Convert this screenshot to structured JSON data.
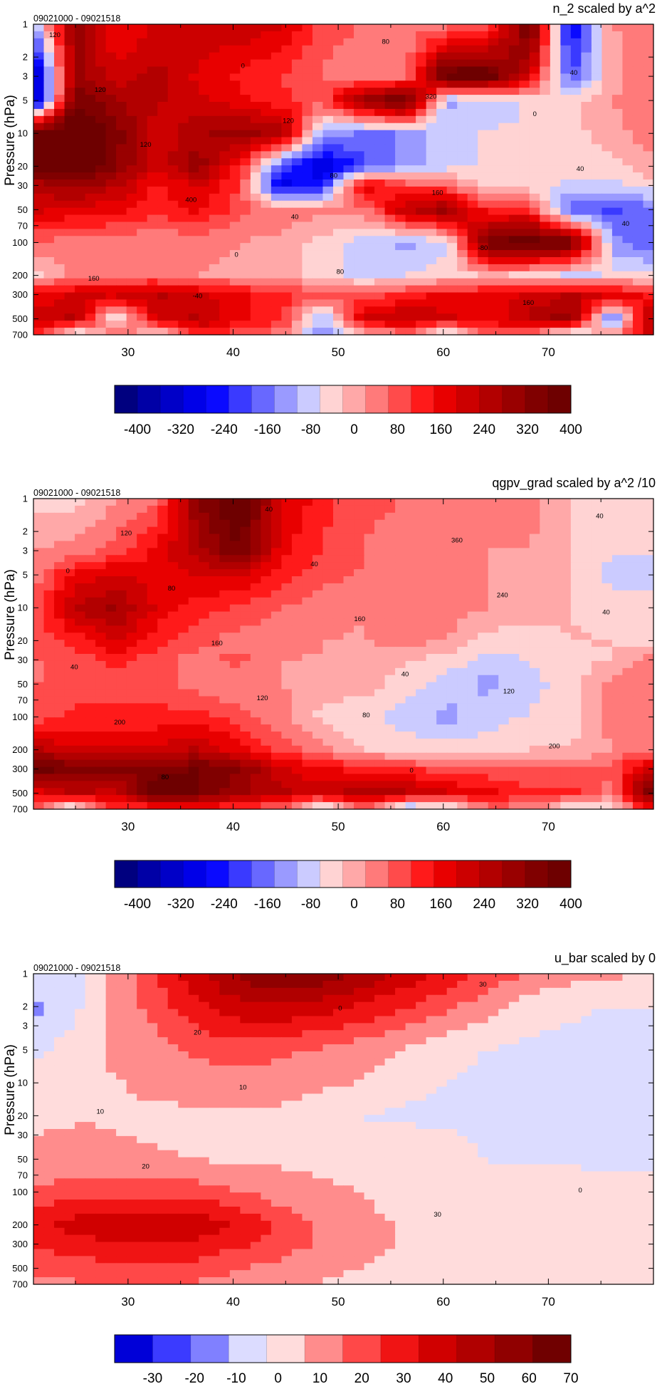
{
  "chart_data": [
    {
      "type": "heatmap",
      "title": "n_2 scaled by a^2",
      "date_range": "09021000 - 09021518",
      "ylabel": "Pressure (hPa)",
      "x_ticks": [
        30,
        40,
        50,
        60,
        70
      ],
      "xlim": [
        21,
        80
      ],
      "y_ticks": [
        1,
        2,
        3,
        5,
        10,
        20,
        30,
        50,
        70,
        100,
        200,
        300,
        500,
        700
      ],
      "y_tick_labels": [
        "1",
        "2",
        "3",
        "5",
        "10",
        "20",
        "30",
        "50",
        "70",
        "100",
        "200",
        "300",
        "500",
        "700"
      ],
      "ylim": [
        1,
        700
      ],
      "y_scale": "log",
      "colorbar_labels": [
        "-400",
        "-320",
        "-240",
        "-160",
        "-80",
        "0",
        "80",
        "160",
        "240",
        "320",
        "400"
      ],
      "colorbar_colors": [
        "#00007f",
        "#0000a6",
        "#0000c8",
        "#0000e8",
        "#0a0aff",
        "#3a3aff",
        "#6868ff",
        "#9a9aff",
        "#cbcbff",
        "#ffd3d3",
        "#ffa8a8",
        "#ff7a7a",
        "#ff4b4b",
        "#ff1a1a",
        "#e80000",
        "#cc0000",
        "#b20000",
        "#990000",
        "#800000",
        "#6e0000"
      ],
      "contour_labels": [
        "120",
        "40",
        "0",
        "-40",
        "160",
        "120",
        "80",
        "40",
        "0",
        "-80",
        "120",
        "80",
        "40",
        "120",
        "160",
        "400",
        "320",
        "160",
        "80",
        "40",
        "0"
      ],
      "field_rows": [
        {
          "p": 1,
          "v": [
            -120,
            300,
            140,
            200,
            220,
            220,
            200,
            80,
            60,
            40,
            40,
            60,
            400,
            -300,
            20,
            40
          ]
        },
        {
          "p": 3,
          "v": [
            -400,
            300,
            200,
            250,
            180,
            140,
            100,
            60,
            40,
            40,
            400,
            400,
            200,
            -200,
            10,
            40
          ]
        },
        {
          "p": 5,
          "v": [
            -400,
            350,
            280,
            240,
            200,
            160,
            120,
            80,
            300,
            400,
            -120,
            -80,
            -60,
            -40,
            20,
            40
          ]
        },
        {
          "p": 10,
          "v": [
            400,
            450,
            340,
            200,
            260,
            300,
            260,
            -120,
            -160,
            -140,
            -80,
            -60,
            -60,
            -40,
            10,
            40
          ]
        },
        {
          "p": 20,
          "v": [
            400,
            420,
            320,
            200,
            300,
            120,
            -200,
            -320,
            -200,
            -120,
            -80,
            -60,
            -60,
            -40,
            -40,
            20
          ]
        },
        {
          "p": 30,
          "v": [
            240,
            300,
            240,
            140,
            200,
            100,
            -300,
            -240,
            200,
            80,
            60,
            -40,
            -40,
            -80,
            -80,
            -40
          ]
        },
        {
          "p": 50,
          "v": [
            200,
            180,
            160,
            120,
            160,
            80,
            40,
            40,
            40,
            240,
            300,
            120,
            120,
            -200,
            -200,
            -160
          ]
        },
        {
          "p": 100,
          "v": [
            60,
            40,
            40,
            20,
            40,
            20,
            10,
            -40,
            -80,
            -120,
            -80,
            360,
            400,
            380,
            -120,
            -200
          ]
        },
        {
          "p": 200,
          "v": [
            -40,
            40,
            40,
            40,
            20,
            10,
            0,
            -40,
            -80,
            -60,
            -40,
            -20,
            -40,
            -80,
            -60,
            -40
          ]
        },
        {
          "p": 300,
          "v": [
            160,
            200,
            200,
            240,
            200,
            160,
            120,
            80,
            80,
            120,
            160,
            160,
            200,
            240,
            200,
            120
          ]
        },
        {
          "p": 500,
          "v": [
            200,
            240,
            -80,
            200,
            240,
            160,
            120,
            -120,
            200,
            240,
            200,
            160,
            240,
            300,
            -200,
            300
          ]
        },
        {
          "p": 700,
          "v": [
            120,
            -120,
            80,
            -80,
            120,
            60,
            40,
            -160,
            -40,
            40,
            -120,
            80,
            40,
            -120,
            40,
            200
          ]
        }
      ]
    },
    {
      "type": "heatmap",
      "title": "qgpv_grad scaled by a^2 /10",
      "date_range": "09021000 - 09021518",
      "ylabel": "Pressure (hPa)",
      "x_ticks": [
        30,
        40,
        50,
        60,
        70
      ],
      "xlim": [
        21,
        80
      ],
      "y_ticks": [
        1,
        2,
        3,
        5,
        10,
        20,
        30,
        50,
        70,
        100,
        200,
        300,
        500,
        700
      ],
      "y_tick_labels": [
        "1",
        "2",
        "3",
        "5",
        "10",
        "20",
        "30",
        "50",
        "70",
        "100",
        "200",
        "300",
        "500",
        "700"
      ],
      "ylim": [
        1,
        700
      ],
      "y_scale": "log",
      "colorbar_labels": [
        "-400",
        "-320",
        "-240",
        "-160",
        "-80",
        "0",
        "80",
        "160",
        "240",
        "320",
        "400"
      ],
      "colorbar_colors": [
        "#00007f",
        "#0000a6",
        "#0000c8",
        "#0000e8",
        "#0a0aff",
        "#3a3aff",
        "#6868ff",
        "#9a9aff",
        "#cbcbff",
        "#ffd3d3",
        "#ffa8a8",
        "#ff7a7a",
        "#ff4b4b",
        "#ff1a1a",
        "#e80000",
        "#cc0000",
        "#b20000",
        "#990000",
        "#800000",
        "#6e0000"
      ],
      "contour_labels": [
        "120",
        "80",
        "40",
        "40",
        "120",
        "80",
        "0",
        "40",
        "40",
        "200",
        "160",
        "360",
        "200",
        "160",
        "40",
        "120",
        "240",
        "80",
        "40",
        "0"
      ],
      "field_rows": [
        {
          "p": 1,
          "v": [
            -40,
            -40,
            20,
            60,
            320,
            420,
            200,
            120,
            80,
            60,
            40,
            40,
            40,
            -20,
            -40,
            -40
          ]
        },
        {
          "p": 3,
          "v": [
            20,
            40,
            80,
            160,
            260,
            360,
            160,
            100,
            60,
            40,
            40,
            20,
            20,
            -20,
            -60,
            -60
          ]
        },
        {
          "p": 5,
          "v": [
            40,
            160,
            200,
            160,
            200,
            200,
            120,
            80,
            60,
            40,
            40,
            20,
            0,
            -20,
            -80,
            -80
          ]
        },
        {
          "p": 10,
          "v": [
            80,
            240,
            280,
            180,
            120,
            100,
            60,
            40,
            20,
            40,
            40,
            20,
            0,
            -20,
            -40,
            -40
          ]
        },
        {
          "p": 20,
          "v": [
            80,
            120,
            200,
            120,
            80,
            40,
            40,
            20,
            20,
            40,
            20,
            -40,
            -40,
            -20,
            -20,
            -40
          ]
        },
        {
          "p": 30,
          "v": [
            60,
            80,
            120,
            80,
            40,
            80,
            20,
            20,
            0,
            -20,
            -40,
            -80,
            -60,
            -40,
            -20,
            40
          ]
        },
        {
          "p": 50,
          "v": [
            60,
            80,
            80,
            80,
            40,
            20,
            20,
            20,
            0,
            -40,
            -80,
            -120,
            -80,
            -40,
            40,
            60
          ]
        },
        {
          "p": 100,
          "v": [
            80,
            120,
            120,
            120,
            120,
            80,
            40,
            -40,
            -60,
            -80,
            -120,
            -80,
            -60,
            -40,
            40,
            40
          ]
        },
        {
          "p": 200,
          "v": [
            240,
            200,
            200,
            200,
            240,
            160,
            80,
            40,
            -20,
            -40,
            -40,
            -40,
            -20,
            -20,
            20,
            40
          ]
        },
        {
          "p": 300,
          "v": [
            400,
            340,
            320,
            340,
            360,
            320,
            200,
            160,
            120,
            120,
            80,
            80,
            60,
            60,
            80,
            240
          ]
        },
        {
          "p": 500,
          "v": [
            160,
            240,
            200,
            400,
            360,
            280,
            240,
            200,
            280,
            240,
            200,
            160,
            120,
            120,
            40,
            400
          ]
        },
        {
          "p": 700,
          "v": [
            80,
            -120,
            120,
            80,
            120,
            80,
            40,
            -120,
            40,
            -160,
            -120,
            40,
            40,
            -80,
            -40,
            120
          ]
        }
      ]
    },
    {
      "type": "heatmap",
      "title": "u_bar scaled by 0",
      "date_range": "09021000 - 09021518",
      "ylabel": "Pressure (hPa)",
      "x_ticks": [
        30,
        40,
        50,
        60,
        70
      ],
      "xlim": [
        21,
        80
      ],
      "y_ticks": [
        1,
        2,
        3,
        5,
        10,
        20,
        30,
        50,
        70,
        100,
        200,
        300,
        500,
        700
      ],
      "y_tick_labels": [
        "1",
        "2",
        "3",
        "5",
        "10",
        "20",
        "30",
        "50",
        "70",
        "100",
        "200",
        "300",
        "500",
        "700"
      ],
      "ylim": [
        1,
        700
      ],
      "y_scale": "log",
      "colorbar_labels": [
        "-30",
        "-20",
        "-10",
        "0",
        "10",
        "20",
        "30",
        "40",
        "50",
        "60",
        "70"
      ],
      "colorbar_colors": [
        "#0000d8",
        "#3b3bff",
        "#8080ff",
        "#dcdcff",
        "#ffdcdc",
        "#ff8c8c",
        "#ff4848",
        "#f01414",
        "#d00000",
        "#b00000",
        "#900000",
        "#700000"
      ],
      "contour_labels": [
        "20",
        "30",
        "10",
        "0",
        "0",
        "10",
        "30",
        "20"
      ],
      "field_rows": [
        {
          "p": 1,
          "v": [
            -5,
            -5,
            10,
            25,
            40,
            55,
            62,
            58,
            50,
            40,
            30,
            22,
            15,
            10,
            8,
            5
          ]
        },
        {
          "p": 2,
          "v": [
            -15,
            -5,
            8,
            20,
            32,
            40,
            42,
            38,
            32,
            25,
            18,
            10,
            0,
            -2,
            -3,
            -3
          ]
        },
        {
          "p": 5,
          "v": [
            -5,
            2,
            8,
            12,
            18,
            20,
            18,
            14,
            10,
            6,
            0,
            -3,
            -4,
            -4,
            -4,
            -4
          ]
        },
        {
          "p": 10,
          "v": [
            2,
            5,
            6,
            8,
            10,
            11,
            10,
            8,
            6,
            0,
            -3,
            -4,
            -4,
            -4,
            -4,
            -4
          ]
        },
        {
          "p": 20,
          "v": [
            5,
            6,
            6,
            5,
            5,
            5,
            5,
            0,
            -3,
            -4,
            -4,
            -4,
            -4,
            -4,
            -4,
            -4
          ]
        },
        {
          "p": 50,
          "v": [
            8,
            8,
            7,
            7,
            6,
            5,
            5,
            4,
            3,
            2,
            0,
            -3,
            -4,
            -4,
            -4,
            -4
          ]
        },
        {
          "p": 100,
          "v": [
            18,
            20,
            22,
            22,
            20,
            16,
            10,
            8,
            6,
            4,
            2,
            1,
            1,
            1,
            0,
            -1
          ]
        },
        {
          "p": 200,
          "v": [
            30,
            38,
            42,
            42,
            40,
            32,
            22,
            14,
            8,
            6,
            5,
            4,
            4,
            3,
            3,
            3
          ]
        },
        {
          "p": 300,
          "v": [
            25,
            30,
            33,
            34,
            32,
            26,
            20,
            14,
            8,
            6,
            5,
            4,
            4,
            3,
            3,
            3
          ]
        },
        {
          "p": 500,
          "v": [
            18,
            20,
            22,
            22,
            20,
            16,
            12,
            8,
            6,
            5,
            4,
            4,
            3,
            3,
            3,
            3
          ]
        },
        {
          "p": 700,
          "v": [
            12,
            14,
            16,
            16,
            14,
            10,
            8,
            6,
            5,
            4,
            4,
            3,
            3,
            3,
            3,
            3
          ]
        }
      ]
    }
  ]
}
